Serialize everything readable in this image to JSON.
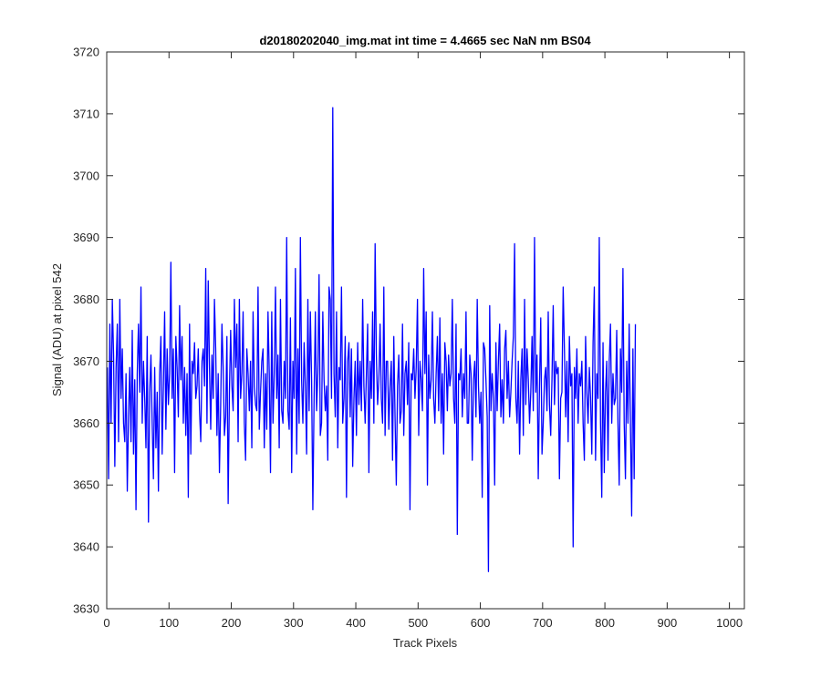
{
  "chart_data": {
    "type": "line",
    "title": "d20180202040_img.mat int time = 4.4665 sec  NaN nm BS04",
    "xlabel": "Track Pixels",
    "ylabel": "Signal (ADU) at pixel 542",
    "xlim": [
      0,
      1024
    ],
    "ylim": [
      3630,
      3720
    ],
    "xticks": [
      0,
      100,
      200,
      300,
      400,
      500,
      600,
      700,
      800,
      900,
      1000
    ],
    "yticks": [
      3630,
      3640,
      3650,
      3660,
      3670,
      3680,
      3690,
      3700,
      3710,
      3720
    ],
    "grid": false,
    "box": true,
    "series": [
      {
        "color": "#0000ff",
        "x_start": 1,
        "x_step": 2,
        "values": [
          3669,
          3651,
          3676,
          3660,
          3680,
          3671,
          3653,
          3669,
          3676,
          3657,
          3680,
          3664,
          3672,
          3660,
          3657,
          3668,
          3649,
          3661,
          3669,
          3657,
          3675,
          3655,
          3667,
          3646,
          3668,
          3676,
          3665,
          3682,
          3660,
          3670,
          3664,
          3656,
          3674,
          3644,
          3665,
          3671,
          3660,
          3651,
          3669,
          3656,
          3665,
          3649,
          3668,
          3674,
          3655,
          3666,
          3678,
          3659,
          3672,
          3663,
          3668,
          3686,
          3664,
          3672,
          3652,
          3674,
          3669,
          3661,
          3679,
          3667,
          3674,
          3660,
          3669,
          3658,
          3668,
          3648,
          3676,
          3655,
          3670,
          3668,
          3673,
          3664,
          3666,
          3672,
          3662,
          3657,
          3670,
          3672,
          3666,
          3685,
          3660,
          3683,
          3669,
          3659,
          3671,
          3664,
          3680,
          3672,
          3658,
          3668,
          3652,
          3663,
          3676,
          3669,
          3658,
          3661,
          3674,
          3647,
          3665,
          3675,
          3666,
          3662,
          3680,
          3669,
          3676,
          3657,
          3680,
          3664,
          3668,
          3678,
          3660,
          3654,
          3672,
          3668,
          3662,
          3670,
          3656,
          3678,
          3666,
          3663,
          3662,
          3682,
          3659,
          3665,
          3670,
          3672,
          3656,
          3668,
          3659,
          3678,
          3668,
          3652,
          3678,
          3660,
          3668,
          3682,
          3664,
          3671,
          3656,
          3680,
          3662,
          3660,
          3670,
          3664,
          3690,
          3662,
          3659,
          3677,
          3652,
          3670,
          3664,
          3685,
          3655,
          3672,
          3660,
          3690,
          3667,
          3660,
          3673,
          3666,
          3655,
          3680,
          3662,
          3678,
          3667,
          3646,
          3664,
          3678,
          3662,
          3668,
          3684,
          3658,
          3660,
          3678,
          3667,
          3662,
          3666,
          3654,
          3682,
          3680,
          3664,
          3711,
          3668,
          3661,
          3678,
          3656,
          3669,
          3667,
          3682,
          3660,
          3664,
          3674,
          3648,
          3670,
          3673,
          3661,
          3672,
          3653,
          3664,
          3670,
          3658,
          3673,
          3663,
          3670,
          3662,
          3680,
          3666,
          3660,
          3668,
          3676,
          3652,
          3670,
          3664,
          3678,
          3660,
          3689,
          3671,
          3663,
          3667,
          3676,
          3664,
          3660,
          3682,
          3658,
          3670,
          3670,
          3659,
          3666,
          3670,
          3654,
          3674,
          3661,
          3650,
          3666,
          3671,
          3660,
          3662,
          3676,
          3658,
          3668,
          3670,
          3663,
          3673,
          3646,
          3668,
          3667,
          3672,
          3664,
          3669,
          3680,
          3658,
          3670,
          3667,
          3662,
          3685,
          3668,
          3678,
          3650,
          3671,
          3664,
          3667,
          3678,
          3664,
          3660,
          3668,
          3674,
          3662,
          3677,
          3660,
          3668,
          3655,
          3673,
          3670,
          3662,
          3671,
          3666,
          3668,
          3680,
          3664,
          3660,
          3676,
          3642,
          3668,
          3667,
          3672,
          3661,
          3668,
          3664,
          3678,
          3660,
          3660,
          3671,
          3668,
          3654,
          3667,
          3670,
          3661,
          3680,
          3666,
          3660,
          3665,
          3648,
          3673,
          3672,
          3667,
          3661,
          3636,
          3679,
          3662,
          3668,
          3664,
          3650,
          3673,
          3662,
          3670,
          3676,
          3661,
          3667,
          3660,
          3672,
          3675,
          3664,
          3670,
          3661,
          3665,
          3670,
          3674,
          3689,
          3664,
          3660,
          3670,
          3655,
          3667,
          3672,
          3658,
          3680,
          3663,
          3672,
          3667,
          3660,
          3665,
          3674,
          3662,
          3690,
          3665,
          3671,
          3651,
          3666,
          3677,
          3655,
          3660,
          3667,
          3669,
          3662,
          3678,
          3663,
          3658,
          3667,
          3679,
          3663,
          3670,
          3668,
          3669,
          3651,
          3664,
          3665,
          3682,
          3672,
          3661,
          3670,
          3657,
          3674,
          3666,
          3668,
          3640,
          3669,
          3664,
          3672,
          3660,
          3668,
          3666,
          3670,
          3660,
          3654,
          3674,
          3665,
          3660,
          3669,
          3664,
          3655,
          3673,
          3682,
          3654,
          3668,
          3664,
          3690,
          3660,
          3648,
          3673,
          3652,
          3665,
          3670,
          3654,
          3670,
          3676,
          3660,
          3668,
          3663,
          3664,
          3675,
          3660,
          3650,
          3672,
          3665,
          3685,
          3660,
          3651,
          3670,
          3660,
          3676,
          3660,
          3645,
          3672,
          3651,
          3676
        ]
      }
    ]
  }
}
